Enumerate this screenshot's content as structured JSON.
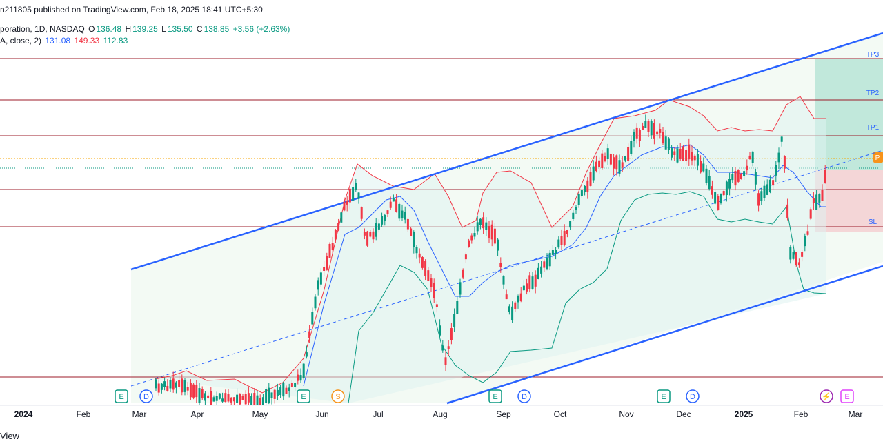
{
  "header": {
    "published": "n211805 published on TradingView.com, Feb 18, 2025 18:41 UTC+5:30"
  },
  "legend": {
    "symbol": "poration, 1D, NASDAQ",
    "o_label": "O",
    "o": "136.48",
    "h_label": "H",
    "h": "139.25",
    "l_label": "L",
    "l": "135.50",
    "c_label": "C",
    "c": "138.85",
    "change": "+3.56 (+2.63%)",
    "bb_name": "A, close, 2)",
    "bb_basis": "131.08",
    "bb_upper": "149.33",
    "bb_lower": "112.83"
  },
  "footer": {
    "label": "View"
  },
  "colors": {
    "up": "#089981",
    "down": "#f23645",
    "channel": "#2962ff",
    "bb_upper": "#f23645",
    "bb_lower": "#089981",
    "bb_basis": "#2962ff",
    "hline": "#9c1b2a",
    "target_zone": "#b7e4d6",
    "stop_zone": "#f3cfd1"
  },
  "chart_data": {
    "type": "candlestick",
    "x_ticks": [
      "2024",
      "Feb",
      "Mar",
      "Apr",
      "May",
      "Jun",
      "Jul",
      "Aug",
      "Sep",
      "Oct",
      "Nov",
      "Dec",
      "2025",
      "Feb",
      "Mar"
    ],
    "levels": [
      {
        "label": "TP3"
      },
      {
        "label": "TP2"
      },
      {
        "label": "TP1"
      },
      {
        "label": ""
      },
      {
        "label": ""
      },
      {
        "label": "SL"
      },
      {
        "label": ""
      }
    ],
    "position_tag": "P",
    "event_markers": [
      "E",
      "D",
      "E",
      "S",
      "E",
      "D",
      "E",
      "D",
      "⚡",
      "E"
    ],
    "last": {
      "open": 136.48,
      "high": 139.25,
      "low": 135.5,
      "close": 138.85,
      "change": 3.56,
      "change_pct": 2.63
    },
    "bollinger": {
      "basis": 131.08,
      "upper": 149.33,
      "lower": 112.83
    },
    "grid": false
  }
}
